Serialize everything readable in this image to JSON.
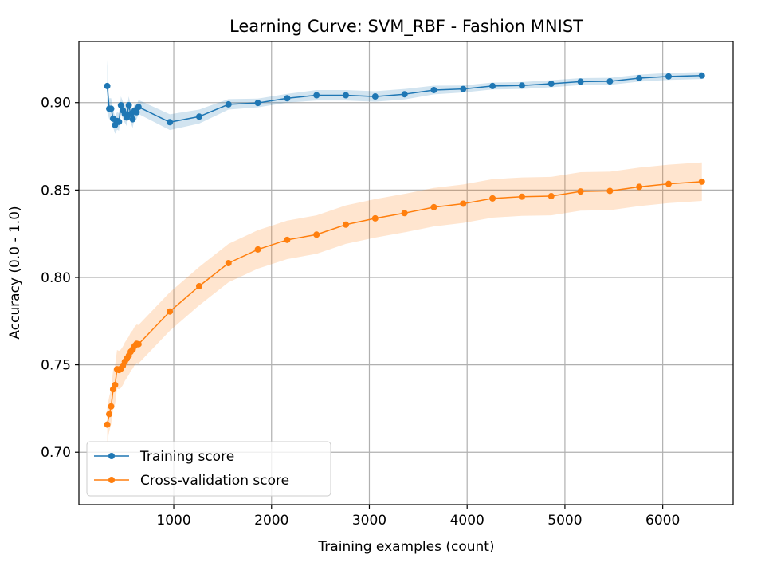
{
  "chart_data": {
    "type": "line",
    "title": "Learning Curve: SVM_RBF - Fashion MNIST",
    "xlabel": "Training examples (count)",
    "ylabel": "Accuracy (0.0 - 1.0)",
    "xlim": [
      30,
      6720
    ],
    "ylim": [
      0.67,
      0.935
    ],
    "xticks": [
      1000,
      2000,
      3000,
      4000,
      5000,
      6000
    ],
    "yticks": [
      0.7,
      0.75,
      0.8,
      0.85,
      0.9
    ],
    "ytick_labels": [
      "0.70",
      "0.75",
      "0.80",
      "0.85",
      "0.90"
    ],
    "grid": true,
    "legend_position": "lower-left",
    "x": [
      320,
      340,
      360,
      380,
      400,
      420,
      440,
      460,
      480,
      500,
      520,
      540,
      560,
      580,
      600,
      620,
      640,
      960,
      1260,
      1560,
      1860,
      2160,
      2460,
      2760,
      3060,
      3360,
      3660,
      3960,
      4260,
      4560,
      4860,
      5160,
      5460,
      5760,
      6060,
      6400
    ],
    "series": [
      {
        "name": "Training score",
        "color": "#1f77b4",
        "values": [
          0.9095,
          0.8965,
          0.8965,
          0.8908,
          0.8872,
          0.8895,
          0.889,
          0.8985,
          0.8955,
          0.8935,
          0.8915,
          0.8985,
          0.8935,
          0.8905,
          0.8955,
          0.8945,
          0.8975,
          0.8888,
          0.892,
          0.899,
          0.8998,
          0.9025,
          0.9042,
          0.9042,
          0.9035,
          0.9048,
          0.9072,
          0.9078,
          0.9095,
          0.9098,
          0.9108,
          0.912,
          0.9122,
          0.914,
          0.915,
          0.9155
        ],
        "band": [
          0.015,
          0.006,
          0.006,
          0.005,
          0.005,
          0.005,
          0.005,
          0.005,
          0.005,
          0.005,
          0.005,
          0.005,
          0.005,
          0.005,
          0.004,
          0.004,
          0.004,
          0.0045,
          0.004,
          0.003,
          0.0025,
          0.0025,
          0.003,
          0.003,
          0.003,
          0.003,
          0.0025,
          0.002,
          0.002,
          0.002,
          0.002,
          0.002,
          0.002,
          0.002,
          0.002,
          0.002
        ]
      },
      {
        "name": "Cross-validation score",
        "color": "#ff7f0e",
        "values": [
          0.7158,
          0.7218,
          0.7262,
          0.736,
          0.7385,
          0.7475,
          0.747,
          0.7478,
          0.7495,
          0.7518,
          0.7535,
          0.7552,
          0.7575,
          0.7588,
          0.7608,
          0.762,
          0.7618,
          0.7805,
          0.795,
          0.8082,
          0.816,
          0.8215,
          0.8245,
          0.8302,
          0.8338,
          0.8368,
          0.8402,
          0.8422,
          0.8452,
          0.8462,
          0.8465,
          0.8492,
          0.8495,
          0.8518,
          0.8535,
          0.8548
        ],
        "band": [
          0.01,
          0.01,
          0.01,
          0.011,
          0.011,
          0.011,
          0.011,
          0.011,
          0.011,
          0.011,
          0.011,
          0.011,
          0.011,
          0.011,
          0.011,
          0.011,
          0.011,
          0.011,
          0.011,
          0.011,
          0.011,
          0.011,
          0.011,
          0.011,
          0.011,
          0.011,
          0.011,
          0.011,
          0.011,
          0.011,
          0.011,
          0.011,
          0.011,
          0.011,
          0.011,
          0.011
        ]
      }
    ]
  }
}
